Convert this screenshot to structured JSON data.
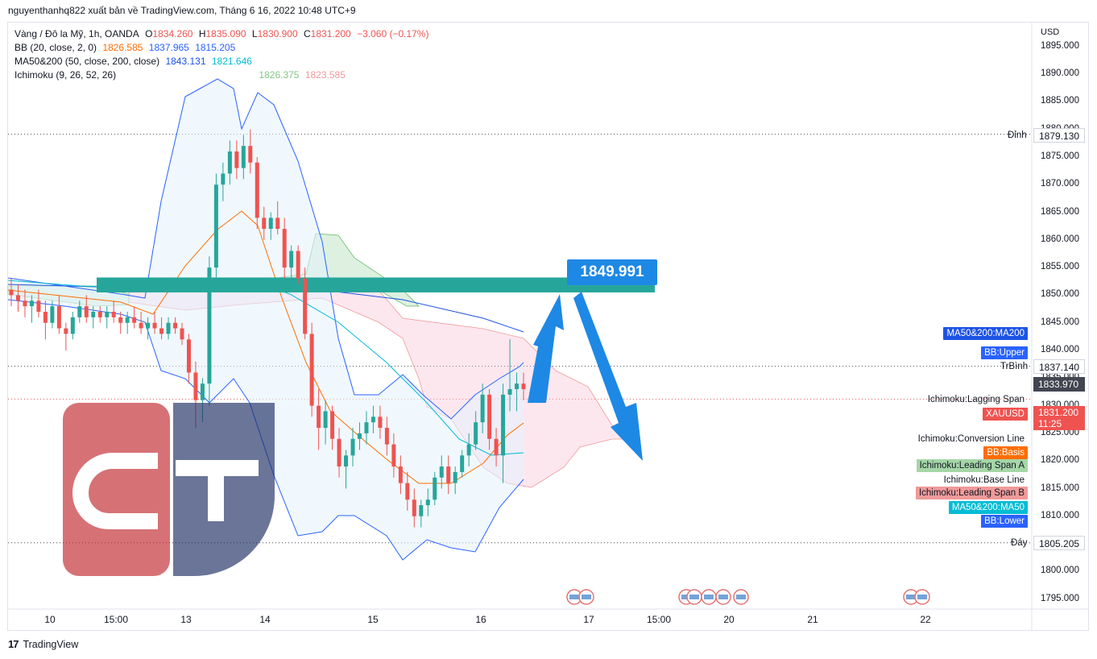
{
  "header": {
    "publisher_line": "nguyenthanhq822 xuất bản về TradingView.com, Tháng 6 16, 2022 10:48 UTC+9"
  },
  "legend": {
    "symbol": "Vàng / Đô la Mỹ, 1h, OANDA",
    "o_label": "O",
    "o": "1834.260",
    "h_label": "H",
    "h": "1835.090",
    "l_label": "L",
    "l": "1830.900",
    "c_label": "C",
    "c": "1831.200",
    "change": "−3.060 (−0.17%)",
    "bb_name": "BB (20, close, 2, 0)",
    "bb_basis": "1826.585",
    "bb_upper": "1837.965",
    "bb_lower": "1815.205",
    "ma_name": "MA50&200 (50, close, 200, close)",
    "ma_200": "1843.131",
    "ma_50": "1821.646",
    "ichi_name": "Ichimoku (9, 26, 52, 26)",
    "ichi_a": "1826.375",
    "ichi_b": "1823.585"
  },
  "axis": {
    "currency": "USD",
    "price_ticks": [
      "1895.000",
      "1890.000",
      "1885.000",
      "1880.000",
      "1875.000",
      "1870.000",
      "1865.000",
      "1860.000",
      "1855.000",
      "1850.000",
      "1845.000",
      "1840.000",
      "1835.000",
      "1830.000",
      "1825.000",
      "1820.000",
      "1815.000",
      "1810.000",
      "1805.000",
      "1800.000",
      "1795.000"
    ],
    "time_ticks": [
      "10",
      "15:00",
      "13",
      "14",
      "15",
      "16",
      "17",
      "15:00",
      "20",
      "21",
      "22"
    ]
  },
  "price_labels": {
    "high_name": "Đỉnh",
    "high": "1879.130",
    "mid_name": "TrBình",
    "mid": "1837.140",
    "low_name": "Đáy",
    "low": "1805.205",
    "current_dark": "1833.970",
    "last": "1831.200",
    "countdown": "11:25"
  },
  "tags": {
    "ma200": "MA50&200:MA200",
    "bb_upper": "BB:Upper",
    "lagging": "Ichimoku:Lagging Span",
    "xauusd": "XAUUSD",
    "conversion": "Ichimoku:Conversion Line",
    "bb_basis": "BB:Basis",
    "span_a": "Ichimoku:Leading Span A",
    "base": "Ichimoku:Base Line",
    "span_b": "Ichimoku:Leading Span B",
    "ma50": "MA50&200:MA50",
    "bb_lower": "BB:Lower"
  },
  "annotation": {
    "target_price": "1849.991"
  },
  "footer": {
    "brand": "TradingView"
  },
  "colors": {
    "up": "#26a69a",
    "down": "#ef5350",
    "bb": "#2962ff",
    "bb_basis": "#ff6d00",
    "ma200": "#1e53e5",
    "ma50": "#00bcd4",
    "span_a": "#81c784",
    "span_b": "#ef9a9a",
    "zone": "#26a69a",
    "arrow": "#1e88e5"
  },
  "chart_data": {
    "type": "candlestick",
    "title": "Vàng / Đô la Mỹ, 1h, OANDA",
    "ylim": [
      1792,
      1898
    ],
    "y_axis": "USD",
    "candles": [
      [
        1851,
        1853,
        1848,
        1850
      ],
      [
        1850,
        1852,
        1847,
        1849
      ],
      [
        1849,
        1851,
        1846,
        1848
      ],
      [
        1848,
        1850,
        1845,
        1849
      ],
      [
        1849,
        1851,
        1846,
        1847
      ],
      [
        1847,
        1849,
        1842,
        1845
      ],
      [
        1845,
        1849,
        1844,
        1848
      ],
      [
        1848,
        1850,
        1843,
        1844
      ],
      [
        1844,
        1845,
        1840,
        1843
      ],
      [
        1843,
        1847,
        1842,
        1846
      ],
      [
        1846,
        1849,
        1845,
        1848
      ],
      [
        1848,
        1850,
        1845,
        1846
      ],
      [
        1846,
        1848,
        1844,
        1847
      ],
      [
        1847,
        1848,
        1845,
        1846
      ],
      [
        1846,
        1848,
        1844,
        1847
      ],
      [
        1847,
        1849,
        1845,
        1846
      ],
      [
        1846,
        1847,
        1843,
        1845
      ],
      [
        1845,
        1847,
        1843,
        1846
      ],
      [
        1846,
        1848,
        1844,
        1845
      ],
      [
        1845,
        1847,
        1843,
        1844
      ],
      [
        1844,
        1846,
        1842,
        1845
      ],
      [
        1845,
        1847,
        1843,
        1844
      ],
      [
        1844,
        1846,
        1842,
        1843
      ],
      [
        1843,
        1846,
        1842,
        1845
      ],
      [
        1845,
        1846,
        1843,
        1844
      ],
      [
        1844,
        1845,
        1841,
        1842
      ],
      [
        1842,
        1843,
        1834,
        1836
      ],
      [
        1836,
        1838,
        1826,
        1831
      ],
      [
        1831,
        1835,
        1827,
        1834
      ],
      [
        1834,
        1857,
        1830,
        1855
      ],
      [
        1855,
        1872,
        1853,
        1870
      ],
      [
        1870,
        1874,
        1867,
        1872
      ],
      [
        1872,
        1878,
        1870,
        1876
      ],
      [
        1876,
        1878,
        1871,
        1873
      ],
      [
        1873,
        1879,
        1871,
        1877
      ],
      [
        1877,
        1880,
        1872,
        1874
      ],
      [
        1874,
        1875,
        1862,
        1864
      ],
      [
        1864,
        1866,
        1860,
        1862
      ],
      [
        1862,
        1865,
        1860,
        1864
      ],
      [
        1864,
        1867,
        1861,
        1862
      ],
      [
        1862,
        1864,
        1853,
        1855
      ],
      [
        1855,
        1859,
        1853,
        1858
      ],
      [
        1858,
        1859,
        1852,
        1853
      ],
      [
        1853,
        1855,
        1842,
        1843
      ],
      [
        1843,
        1845,
        1828,
        1830
      ],
      [
        1830,
        1833,
        1822,
        1826
      ],
      [
        1826,
        1831,
        1823,
        1829
      ],
      [
        1829,
        1830,
        1822,
        1824
      ],
      [
        1824,
        1826,
        1817,
        1819
      ],
      [
        1819,
        1822,
        1815,
        1821
      ],
      [
        1821,
        1826,
        1819,
        1824
      ],
      [
        1824,
        1827,
        1822,
        1825
      ],
      [
        1825,
        1829,
        1823,
        1827
      ],
      [
        1827,
        1830,
        1825,
        1828
      ],
      [
        1828,
        1830,
        1824,
        1826
      ],
      [
        1826,
        1828,
        1821,
        1823
      ],
      [
        1823,
        1825,
        1817,
        1819
      ],
      [
        1819,
        1821,
        1814,
        1816
      ],
      [
        1816,
        1818,
        1811,
        1813
      ],
      [
        1813,
        1815,
        1808,
        1810
      ],
      [
        1810,
        1813,
        1808,
        1812
      ],
      [
        1812,
        1815,
        1810,
        1813
      ],
      [
        1813,
        1818,
        1812,
        1817
      ],
      [
        1817,
        1821,
        1815,
        1819
      ],
      [
        1819,
        1821,
        1814,
        1816
      ],
      [
        1816,
        1819,
        1814,
        1818
      ],
      [
        1818,
        1822,
        1817,
        1821
      ],
      [
        1821,
        1825,
        1819,
        1823
      ],
      [
        1823,
        1829,
        1822,
        1827
      ],
      [
        1827,
        1834,
        1825,
        1832
      ],
      [
        1832,
        1833,
        1822,
        1824
      ],
      [
        1824,
        1826,
        1819,
        1821
      ],
      [
        1821,
        1834,
        1816,
        1832
      ],
      [
        1832,
        1842,
        1829,
        1833
      ],
      [
        1833,
        1836,
        1829,
        1834
      ],
      [
        1834,
        1836,
        1831,
        1833
      ]
    ],
    "target_price": 1849.991,
    "resistance_zone": [
      1850.5,
      1853.2
    ]
  }
}
